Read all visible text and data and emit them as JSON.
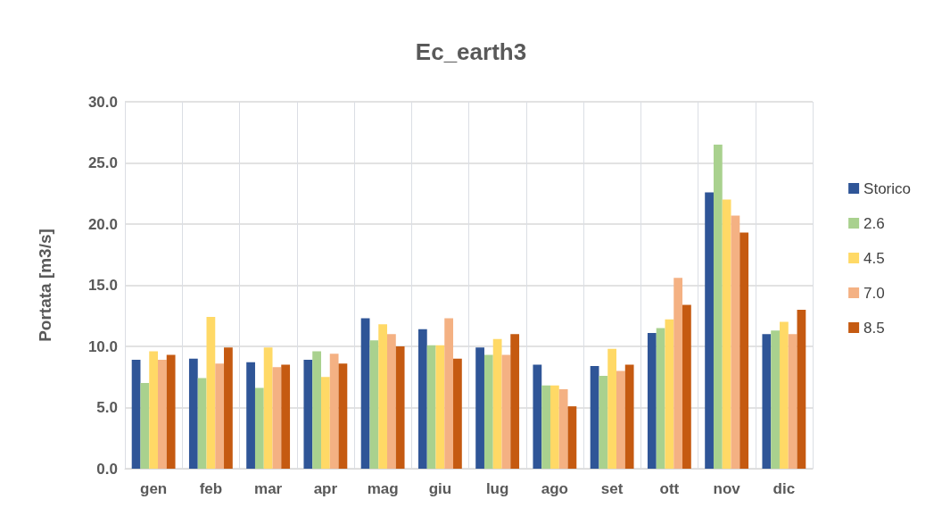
{
  "chart_data": {
    "type": "bar",
    "title": "Ec_earth3",
    "ylabel": "Portata [m3/s]",
    "categories": [
      "gen",
      "feb",
      "mar",
      "apr",
      "mag",
      "giu",
      "lug",
      "ago",
      "set",
      "ott",
      "nov",
      "dic"
    ],
    "series": [
      {
        "name": "Storico",
        "color": "#2f5597",
        "values": [
          8.9,
          9.0,
          8.7,
          8.9,
          12.3,
          11.4,
          9.9,
          8.5,
          8.4,
          11.1,
          22.6,
          11.0
        ]
      },
      {
        "name": "2.6",
        "color": "#a9d18e",
        "values": [
          7.0,
          7.4,
          6.6,
          9.6,
          10.5,
          10.1,
          9.3,
          6.8,
          7.6,
          11.5,
          26.5,
          11.3
        ]
      },
      {
        "name": "4.5",
        "color": "#ffd966",
        "values": [
          9.6,
          12.4,
          9.9,
          7.5,
          11.8,
          10.1,
          10.6,
          6.8,
          9.8,
          12.2,
          22.0,
          12.0
        ]
      },
      {
        "name": "7.0",
        "color": "#f4b183",
        "values": [
          8.9,
          8.6,
          8.3,
          9.4,
          11.0,
          12.3,
          9.3,
          6.5,
          8.0,
          15.6,
          20.7,
          11.0
        ]
      },
      {
        "name": "8.5",
        "color": "#c55a11",
        "values": [
          9.3,
          9.9,
          8.5,
          8.6,
          10.0,
          9.0,
          11.0,
          5.1,
          8.5,
          13.4,
          19.3,
          13.0
        ]
      }
    ],
    "ylim": [
      0,
      30
    ],
    "yticks": [
      {
        "value": 0,
        "label": "0.0"
      },
      {
        "value": 5,
        "label": "5.0"
      },
      {
        "value": 10,
        "label": "10.0"
      },
      {
        "value": 15,
        "label": "15.0"
      },
      {
        "value": 20,
        "label": "20.0"
      },
      {
        "value": 25,
        "label": "25.0"
      },
      {
        "value": 30,
        "label": "30.0"
      }
    ],
    "grid": true,
    "legend": "right"
  }
}
